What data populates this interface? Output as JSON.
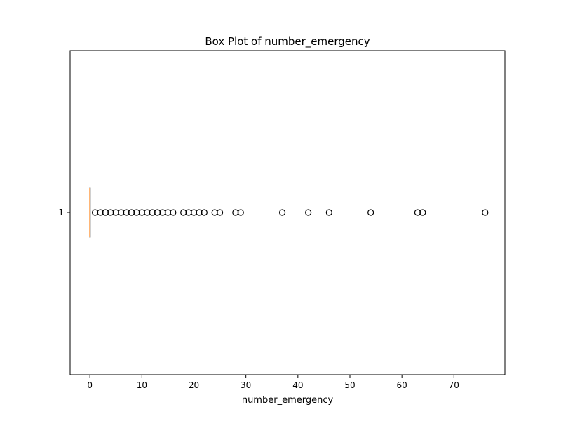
{
  "chart_data": {
    "type": "box",
    "orientation": "horizontal",
    "title": "Box Plot of number_emergency",
    "xlabel": "number_emergency",
    "ylabel": "",
    "xlim": [
      -3.8,
      79.8
    ],
    "xticks": [
      0,
      10,
      20,
      30,
      40,
      50,
      60,
      70
    ],
    "categories": [
      "1"
    ],
    "box": {
      "q1": 0,
      "median": 0,
      "q3": 0,
      "whisker_low": 0,
      "whisker_high": 0
    },
    "outliers": [
      1,
      2,
      3,
      4,
      5,
      6,
      7,
      8,
      9,
      10,
      11,
      12,
      13,
      14,
      15,
      16,
      18,
      19,
      20,
      21,
      22,
      24,
      25,
      28,
      29,
      37,
      42,
      46,
      54,
      63,
      64,
      76
    ],
    "colors": {
      "box": "#000000",
      "median": "#ff7f0e",
      "outlier_edge": "#000000",
      "background": "#ffffff"
    },
    "grid": false
  }
}
